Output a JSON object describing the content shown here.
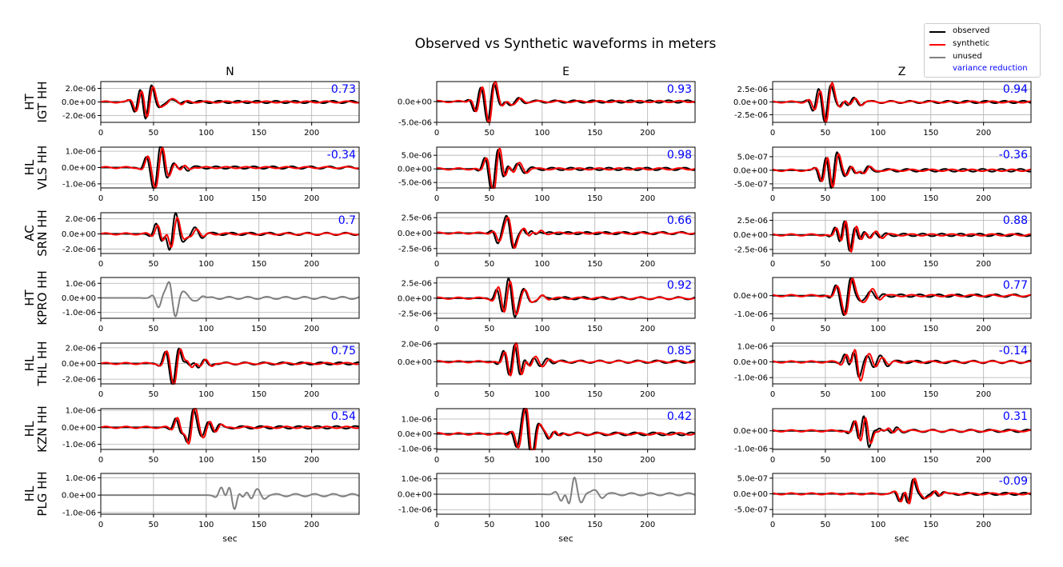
{
  "chart_data": {
    "type": "line",
    "title": "Observed vs Synthetic waveforms in meters",
    "columns": [
      "N",
      "E",
      "Z"
    ],
    "xlabel": "sec",
    "xlim": [
      0,
      245
    ],
    "xticks": [
      0,
      50,
      100,
      150,
      200
    ],
    "grid": true,
    "legend": {
      "placement": "top-right",
      "entries": [
        {
          "label": "observed",
          "color": "#000000"
        },
        {
          "label": "synthetic",
          "color": "#ff0000"
        },
        {
          "label": "unused",
          "color": "#808080"
        },
        {
          "label": "variance reduction",
          "color": "#0000ff",
          "text_only": true
        }
      ]
    },
    "colors": {
      "observed": "#000000",
      "synthetic": "#ff0000",
      "unused": "#808080",
      "vr": "#0000ff"
    },
    "stations": [
      {
        "label": [
          "HT",
          "IGT HH"
        ],
        "panels": [
          {
            "yticks": [
              "2.0e-06",
              "0.0e+00",
              "-2.0e-06"
            ],
            "tickvals": [
              2e-06,
              0,
              -2e-06
            ],
            "ylim": [
              -3e-06,
              3e-06
            ],
            "vr": "0.73",
            "used": true
          },
          {
            "yticks": [
              "0.0e+00",
              "-5.0e-06"
            ],
            "tickvals": [
              0,
              -5e-06
            ],
            "ylim": [
              -5e-06,
              4.8e-06
            ],
            "vr": "0.93",
            "used": true
          },
          {
            "yticks": [
              "2.5e-06",
              "0.0e+00",
              "-2.5e-06"
            ],
            "tickvals": [
              2.5e-06,
              0,
              -2.5e-06
            ],
            "ylim": [
              -4e-06,
              4e-06
            ],
            "vr": "0.94",
            "used": true
          }
        ]
      },
      {
        "label": [
          "HL",
          "VLS HH"
        ],
        "panels": [
          {
            "yticks": [
              "1.0e-06",
              "0.0e+00",
              "-1.0e-06"
            ],
            "tickvals": [
              1e-06,
              0,
              -1e-06
            ],
            "ylim": [
              -1.25e-06,
              1.25e-06
            ],
            "vr": "-0.34",
            "used": true
          },
          {
            "yticks": [
              "5.0e-06",
              "0.0e+00",
              "-5.0e-06"
            ],
            "tickvals": [
              5e-06,
              0,
              -5e-06
            ],
            "ylim": [
              -7e-06,
              8e-06
            ],
            "vr": "0.98",
            "used": true
          },
          {
            "yticks": [
              "5.0e-07",
              "0.0e+00",
              "-5.0e-07"
            ],
            "tickvals": [
              5e-07,
              0,
              -5e-07
            ],
            "ylim": [
              -6.5e-07,
              8.5e-07
            ],
            "vr": "-0.36",
            "used": true
          }
        ]
      },
      {
        "label": [
          "AC",
          "SRN HH"
        ],
        "panels": [
          {
            "yticks": [
              "2.0e-06",
              "0.0e+00",
              "-2.0e-06"
            ],
            "tickvals": [
              2e-06,
              0,
              -2e-06
            ],
            "ylim": [
              -2.6e-06,
              2.8e-06
            ],
            "vr": "0.7",
            "used": true
          },
          {
            "yticks": [
              "2.5e-06",
              "0.0e+00",
              "-2.5e-06"
            ],
            "tickvals": [
              2.5e-06,
              0,
              -2.5e-06
            ],
            "ylim": [
              -3.3e-06,
              3.3e-06
            ],
            "vr": "0.66",
            "used": true
          },
          {
            "yticks": [
              "2.5e-06",
              "0.0e+00",
              "-2.5e-06"
            ],
            "tickvals": [
              2.5e-06,
              0,
              -2.5e-06
            ],
            "ylim": [
              -3.2e-06,
              3.8e-06
            ],
            "vr": "0.88",
            "used": true
          }
        ]
      },
      {
        "label": [
          "HT",
          "KPRO HH"
        ],
        "panels": [
          {
            "yticks": [
              "1.0e-06",
              "0.0e+00",
              "-1.0e-06"
            ],
            "tickvals": [
              1e-06,
              0,
              -1e-06
            ],
            "ylim": [
              -1.4e-06,
              1.4e-06
            ],
            "vr": "",
            "used": false
          },
          {
            "yticks": [
              "2.5e-06",
              "0.0e+00",
              "-2.5e-06"
            ],
            "tickvals": [
              2.5e-06,
              0,
              -2.5e-06
            ],
            "ylim": [
              -3.3e-06,
              3.4e-06
            ],
            "vr": "0.92",
            "used": true
          },
          {
            "yticks": [
              "0.0e+00",
              "-1.0e-06"
            ],
            "tickvals": [
              0,
              -1e-06
            ],
            "ylim": [
              -1.25e-06,
              1e-06
            ],
            "vr": "0.77",
            "used": true
          }
        ]
      },
      {
        "label": [
          "HL",
          "THL HH"
        ],
        "panels": [
          {
            "yticks": [
              "2.0e-06",
              "0.0e+00",
              "-2.0e-06"
            ],
            "tickvals": [
              2e-06,
              0,
              -2e-06
            ],
            "ylim": [
              -2.6e-06,
              2.6e-06
            ],
            "vr": "0.75",
            "used": true
          },
          {
            "yticks": [
              "2.0e-06",
              "0.0e+00"
            ],
            "tickvals": [
              2e-06,
              0
            ],
            "ylim": [
              -2.5e-06,
              2.1e-06
            ],
            "vr": "0.85",
            "used": true
          },
          {
            "yticks": [
              "1.0e-06",
              "0.0e+00",
              "-1.0e-06"
            ],
            "tickvals": [
              1e-06,
              0,
              -1e-06
            ],
            "ylim": [
              -1.4e-06,
              1.2e-06
            ],
            "vr": "-0.14",
            "used": true
          }
        ]
      },
      {
        "label": [
          "HL",
          "KZN HH"
        ],
        "panels": [
          {
            "yticks": [
              "1.0e-06",
              "0.0e+00",
              "-1.0e-06"
            ],
            "tickvals": [
              1e-06,
              0,
              -1e-06
            ],
            "ylim": [
              -1.3e-06,
              1.1e-06
            ],
            "vr": "0.54",
            "used": true
          },
          {
            "yticks": [
              "1.0e-06",
              "0.0e+00",
              "-1.0e-06"
            ],
            "tickvals": [
              1e-06,
              0,
              -1e-06
            ],
            "ylim": [
              -1.05e-06,
              1.7e-06
            ],
            "vr": "0.42",
            "used": true
          },
          {
            "yticks": [
              "0.0e+00",
              "-1.0e-06"
            ],
            "tickvals": [
              0,
              -1e-06
            ],
            "ylim": [
              -1.05e-06,
              1.25e-06
            ],
            "vr": "0.31",
            "used": true
          }
        ]
      },
      {
        "label": [
          "HL",
          "PLG HH"
        ],
        "panels": [
          {
            "yticks": [
              "1.0e-06",
              "0.0e+00",
              "-1.0e-06"
            ],
            "tickvals": [
              1e-06,
              0,
              -1e-06
            ],
            "ylim": [
              -1.1e-06,
              1.25e-06
            ],
            "vr": "",
            "used": false
          },
          {
            "yticks": [
              "1.0e-06",
              "0.0e+00",
              "-1.0e-06"
            ],
            "tickvals": [
              1e-06,
              0,
              -1e-06
            ],
            "ylim": [
              -1.3e-06,
              1.35e-06
            ],
            "vr": "",
            "used": false
          },
          {
            "yticks": [
              "5.0e-07",
              "0.0e+00",
              "-5.0e-07"
            ],
            "tickvals": [
              5e-07,
              0,
              -5e-07
            ],
            "ylim": [
              -6.5e-07,
              6.5e-07
            ],
            "vr": "-0.09",
            "used": true
          }
        ]
      }
    ]
  }
}
